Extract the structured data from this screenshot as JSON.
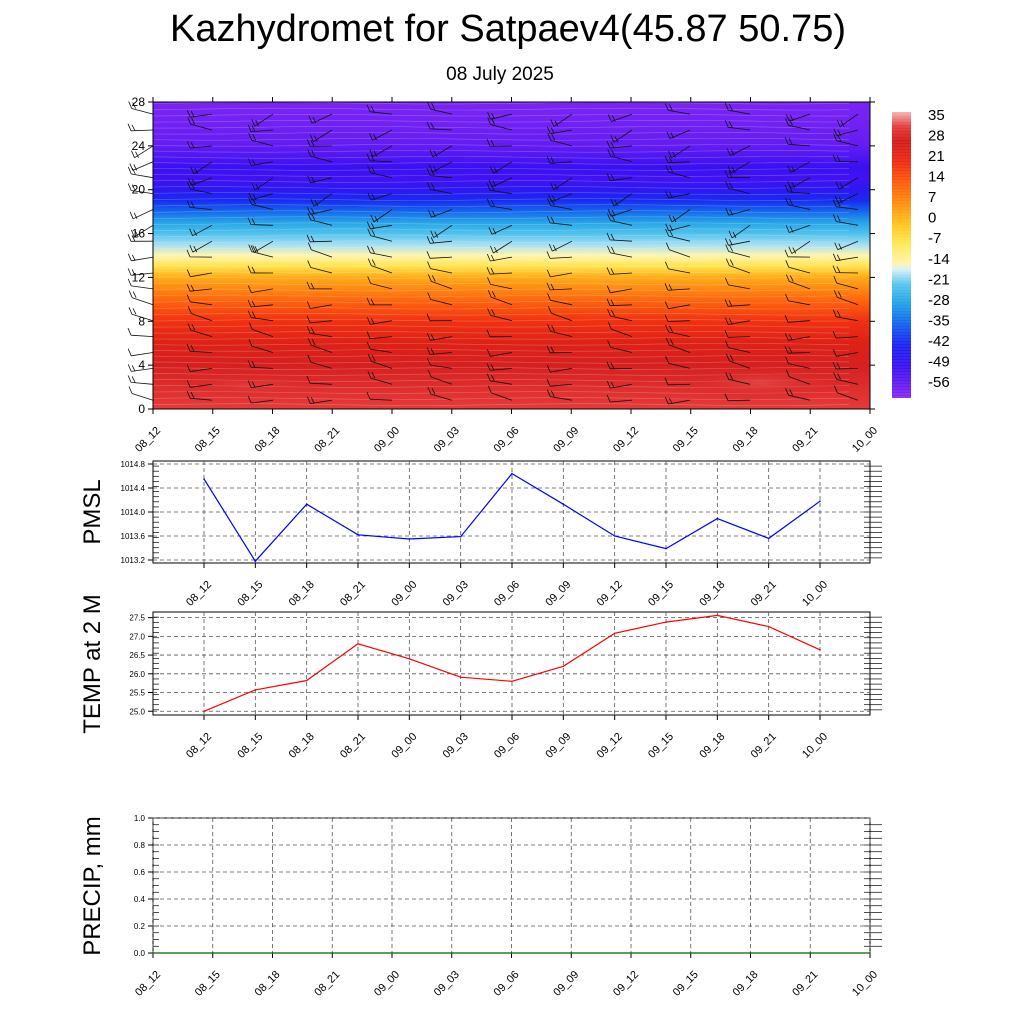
{
  "header": {
    "title": "Kazhydromet for Satpaev4(45.87 50.75)",
    "date": "08 July 2025"
  },
  "colors": {
    "pmsl_line": "#0000ff",
    "temp_line": "#ff0000",
    "precip_line": "#006400",
    "grid": "#555555"
  },
  "chart_data": [
    {
      "type": "heatmap",
      "name": "temperature-wind-cross-section",
      "x": [
        "08_12",
        "08_15",
        "08_18",
        "08_21",
        "09_00",
        "09_03",
        "09_06",
        "09_09",
        "09_12",
        "09_15",
        "09_18",
        "09_21",
        "10_00"
      ],
      "yticks": [
        0,
        4,
        8,
        12,
        16,
        20,
        24,
        28
      ],
      "ylim": [
        0,
        28
      ],
      "colorbar": {
        "labels": [
          "35",
          "28",
          "21",
          "14",
          "7",
          "0",
          "-7",
          "-14",
          "-21",
          "-28",
          "-35",
          "-42",
          "-49",
          "-56"
        ],
        "stops": [
          {
            "v": 38,
            "c": "#f4b6b6"
          },
          {
            "v": 33,
            "c": "#e63a3a"
          },
          {
            "v": 28,
            "c": "#d21a1a"
          },
          {
            "v": 21,
            "c": "#ee2a12"
          },
          {
            "v": 14,
            "c": "#ff5a0a"
          },
          {
            "v": 7,
            "c": "#ff8c10"
          },
          {
            "v": 0,
            "c": "#ffc21e"
          },
          {
            "v": -7,
            "c": "#ffe855"
          },
          {
            "v": -14,
            "c": "#fff5b0"
          },
          {
            "v": -16,
            "c": "#d8f0f8"
          },
          {
            "v": -21,
            "c": "#58c6ee"
          },
          {
            "v": -28,
            "c": "#1ea0e6"
          },
          {
            "v": -35,
            "c": "#1460ee"
          },
          {
            "v": -42,
            "c": "#1a22f0"
          },
          {
            "v": -49,
            "c": "#3a10f2"
          },
          {
            "v": -56,
            "c": "#6a1ef2"
          },
          {
            "v": -60,
            "c": "#8a2af4"
          }
        ]
      },
      "temperature_profile_by_height": [
        [
          0,
          33
        ],
        [
          2,
          31
        ],
        [
          4,
          29
        ],
        [
          6,
          25
        ],
        [
          8,
          20
        ],
        [
          10,
          12
        ],
        [
          12,
          3
        ],
        [
          13,
          -6
        ],
        [
          14,
          -14
        ],
        [
          15,
          -18
        ],
        [
          16,
          -22
        ],
        [
          17,
          -27
        ],
        [
          18,
          -34
        ],
        [
          19,
          -41
        ],
        [
          20,
          -46
        ],
        [
          21,
          -50
        ],
        [
          22,
          -49
        ],
        [
          23,
          -52
        ],
        [
          24,
          -55
        ],
        [
          26,
          -57
        ],
        [
          28,
          -58
        ]
      ],
      "grid": false
    },
    {
      "type": "line",
      "name": "pmsl",
      "ylabel": "PMSL",
      "x": [
        "08_12",
        "08_15",
        "08_18",
        "08_21",
        "09_00",
        "09_03",
        "09_06",
        "09_09",
        "09_12",
        "09_15",
        "09_18",
        "09_21",
        "10_00"
      ],
      "values": [
        1014.55,
        1013.18,
        1014.13,
        1013.62,
        1013.55,
        1013.59,
        1014.64,
        1014.13,
        1013.6,
        1013.39,
        1013.89,
        1013.56,
        1014.18
      ],
      "yticks": [
        "1013.2",
        "1013.6",
        "1014.0",
        "1014.4",
        "1014.8"
      ],
      "ylim": [
        1013.15,
        1014.85
      ],
      "grid": true
    },
    {
      "type": "line",
      "name": "temp-2m",
      "ylabel": "TEMP at 2 M",
      "x": [
        "08_12",
        "08_15",
        "08_18",
        "08_21",
        "09_00",
        "09_03",
        "09_06",
        "09_09",
        "09_12",
        "09_15",
        "09_18",
        "09_21",
        "10_00"
      ],
      "values": [
        25.0,
        25.57,
        25.82,
        26.8,
        26.4,
        25.91,
        25.8,
        26.2,
        27.08,
        27.38,
        27.56,
        27.26,
        26.64
      ],
      "yticks": [
        "25.0",
        "25.5",
        "26.0",
        "26.5",
        "27.0",
        "27.5"
      ],
      "ylim": [
        24.9,
        27.65
      ],
      "grid": true
    },
    {
      "type": "line",
      "name": "precip",
      "ylabel": "PRECIP, mm",
      "x": [
        "08_12",
        "08_15",
        "08_18",
        "08_21",
        "09_00",
        "09_03",
        "09_06",
        "09_09",
        "09_12",
        "09_15",
        "09_18",
        "09_21",
        "10_00"
      ],
      "values": [
        0,
        0,
        0,
        0,
        0,
        0,
        0,
        0,
        0,
        0,
        0,
        0,
        0
      ],
      "yticks": [
        "0.0",
        "0.2",
        "0.4",
        "0.6",
        "0.8",
        "1.0"
      ],
      "ylim": [
        0,
        1
      ],
      "grid": true
    }
  ]
}
